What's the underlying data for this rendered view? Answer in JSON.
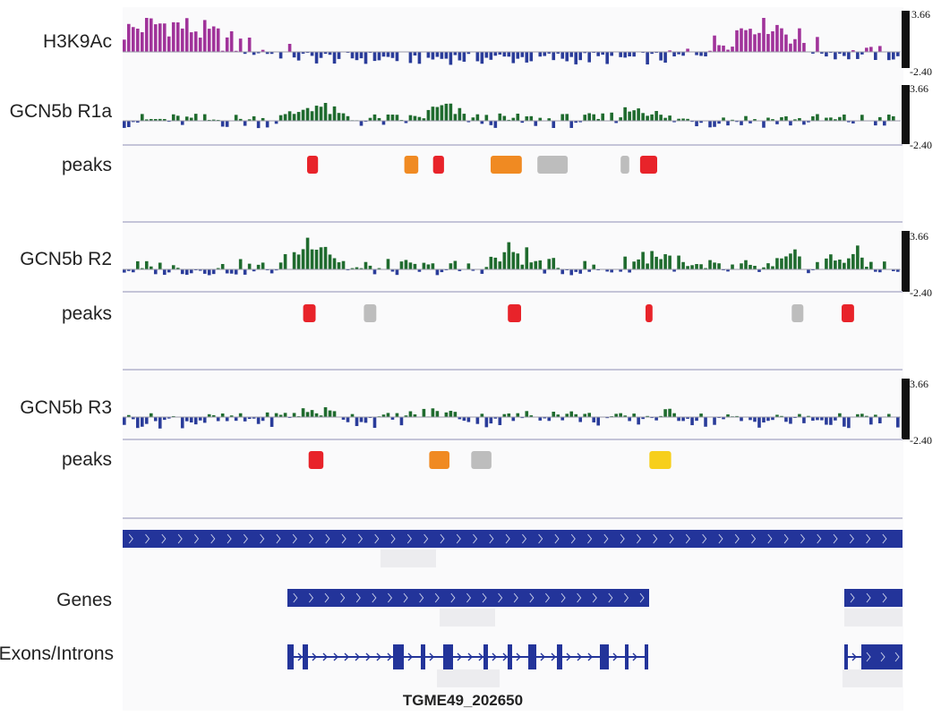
{
  "tracks": [
    {
      "label": "H3K9Ac",
      "scale_max": "3.66",
      "scale_min": "-2.40"
    },
    {
      "label": "GCN5b R1a",
      "scale_max": "3.66",
      "scale_min": "-2.40"
    },
    {
      "label": "GCN5b R2",
      "scale_max": "3.66",
      "scale_min": "-2.40"
    },
    {
      "label": "GCN5b R3",
      "scale_max": "3.66",
      "scale_min": "-2.40"
    }
  ],
  "peak_label": "peaks",
  "peak_tracks": [
    {
      "peaks": [
        {
          "from": 0.237,
          "to": 0.251,
          "color": "red"
        },
        {
          "from": 0.362,
          "to": 0.38,
          "color": "orange"
        },
        {
          "from": 0.399,
          "to": 0.413,
          "color": "red"
        },
        {
          "from": 0.473,
          "to": 0.513,
          "color": "orange"
        },
        {
          "from": 0.533,
          "to": 0.572,
          "color": "gray"
        },
        {
          "from": 0.64,
          "to": 0.651,
          "color": "gray"
        },
        {
          "from": 0.665,
          "to": 0.687,
          "color": "red"
        }
      ]
    },
    {
      "peaks": [
        {
          "from": 0.232,
          "to": 0.248,
          "color": "red"
        },
        {
          "from": 0.31,
          "to": 0.326,
          "color": "gray"
        },
        {
          "from": 0.495,
          "to": 0.512,
          "color": "red"
        },
        {
          "from": 0.672,
          "to": 0.681,
          "color": "red"
        },
        {
          "from": 0.86,
          "to": 0.875,
          "color": "gray"
        },
        {
          "from": 0.924,
          "to": 0.94,
          "color": "red"
        }
      ]
    },
    {
      "peaks": [
        {
          "from": 0.239,
          "to": 0.258,
          "color": "red"
        },
        {
          "from": 0.394,
          "to": 0.42,
          "color": "orange"
        },
        {
          "from": 0.448,
          "to": 0.474,
          "color": "gray"
        },
        {
          "from": 0.677,
          "to": 0.705,
          "color": "yellow"
        }
      ]
    }
  ],
  "genes_label": "Genes",
  "exons_label": "Exons/Introns",
  "gene_name": "TGME49_202650",
  "colors": {
    "h3k9ac_positive": "#a0339a",
    "positive": "#1f6b2e",
    "negative": "#2a3c9a",
    "gene": "#23349a",
    "peak_red": "#e8232a",
    "peak_orange": "#f08a22",
    "peak_gray": "#bdbdbd",
    "peak_yellow": "#f7cf1c",
    "scale_bar": "#111111",
    "divider": "#c4c4d8",
    "panel_bg": "#fafafb"
  }
}
